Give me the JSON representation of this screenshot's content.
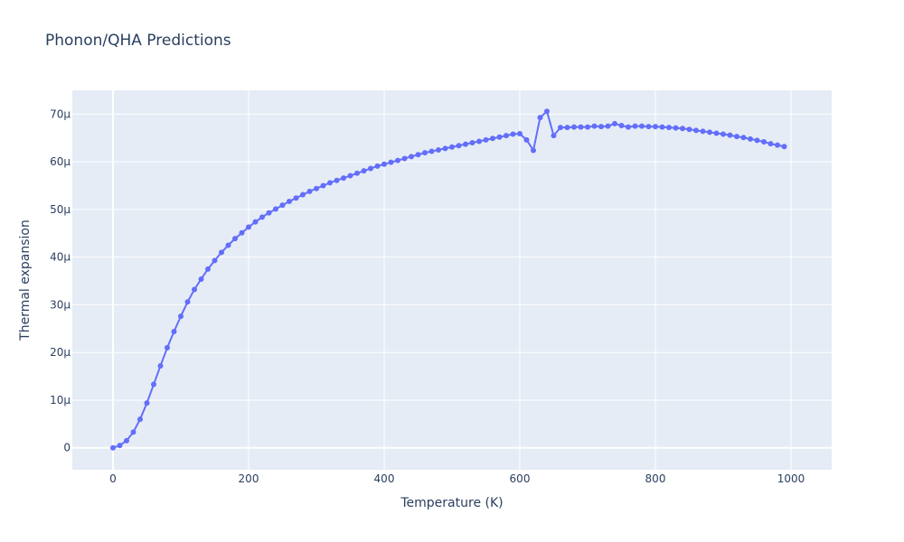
{
  "chart_data": {
    "type": "line",
    "title": "Phonon/QHA Predictions",
    "xlabel": "Temperature (K)",
    "ylabel": "Thermal expansion",
    "xlim": [
      -60,
      1060
    ],
    "ylim": [
      -4.6e-06,
      7.5e-05
    ],
    "x_ticks": [
      0,
      200,
      400,
      600,
      800,
      1000
    ],
    "x_tick_labels": [
      "0",
      "200",
      "400",
      "600",
      "800",
      "1000"
    ],
    "y_ticks": [
      0,
      1e-05,
      2e-05,
      3e-05,
      4e-05,
      5e-05,
      6e-05,
      7e-05
    ],
    "y_tick_labels": [
      "0",
      "10μ",
      "20μ",
      "30μ",
      "40μ",
      "50μ",
      "60μ",
      "70μ"
    ],
    "grid": true,
    "legend": "none",
    "colors": {
      "line": "#636efa",
      "plot_bg": "#e5ecf6",
      "grid": "#ffffff",
      "text": "#2a3f5f"
    },
    "series": [
      {
        "x": [
          0,
          10,
          20,
          30,
          40,
          50,
          60,
          70,
          80,
          90,
          100,
          110,
          120,
          130,
          140,
          150,
          160,
          170,
          180,
          190,
          200,
          210,
          220,
          230,
          240,
          250,
          260,
          270,
          280,
          290,
          300,
          310,
          320,
          330,
          340,
          350,
          360,
          370,
          380,
          390,
          400,
          410,
          420,
          430,
          440,
          450,
          460,
          470,
          480,
          490,
          500,
          510,
          520,
          530,
          540,
          550,
          560,
          570,
          580,
          590,
          600,
          610,
          620,
          630,
          640,
          650,
          660,
          670,
          680,
          690,
          700,
          710,
          720,
          730,
          740,
          750,
          760,
          770,
          780,
          790,
          800,
          810,
          820,
          830,
          840,
          850,
          860,
          870,
          880,
          890,
          900,
          910,
          920,
          930,
          940,
          950,
          960,
          970,
          980,
          990
        ],
        "y": [
          0.0,
          5e-07,
          1.5e-06,
          3.3e-06,
          6e-06,
          9.4e-06,
          1.33e-05,
          1.72e-05,
          2.1e-05,
          2.44e-05,
          2.76e-05,
          3.06e-05,
          3.32e-05,
          3.54e-05,
          3.75e-05,
          3.93e-05,
          4.1e-05,
          4.25e-05,
          4.39e-05,
          4.51e-05,
          4.63e-05,
          4.74e-05,
          4.84e-05,
          4.93e-05,
          5.01e-05,
          5.09e-05,
          5.17e-05,
          5.24e-05,
          5.31e-05,
          5.38e-05,
          5.44e-05,
          5.5e-05,
          5.56e-05,
          5.61e-05,
          5.66e-05,
          5.71e-05,
          5.76e-05,
          5.81e-05,
          5.86e-05,
          5.91e-05,
          5.95e-05,
          5.99e-05,
          6.03e-05,
          6.07e-05,
          6.11e-05,
          6.15e-05,
          6.19e-05,
          6.22e-05,
          6.25e-05,
          6.28e-05,
          6.31e-05,
          6.34e-05,
          6.37e-05,
          6.4e-05,
          6.43e-05,
          6.46e-05,
          6.49e-05,
          6.52e-05,
          6.55e-05,
          6.58e-05,
          6.59e-05,
          6.46e-05,
          6.24e-05,
          6.93e-05,
          7.06e-05,
          6.55e-05,
          6.72e-05,
          6.72e-05,
          6.73e-05,
          6.73e-05,
          6.73e-05,
          6.75e-05,
          6.74e-05,
          6.75e-05,
          6.8e-05,
          6.76e-05,
          6.73e-05,
          6.75e-05,
          6.75e-05,
          6.74e-05,
          6.74e-05,
          6.73e-05,
          6.72e-05,
          6.71e-05,
          6.7e-05,
          6.68e-05,
          6.66e-05,
          6.64e-05,
          6.62e-05,
          6.6e-05,
          6.58e-05,
          6.56e-05,
          6.53e-05,
          6.51e-05,
          6.48e-05,
          6.45e-05,
          6.42e-05,
          6.38e-05,
          6.35e-05,
          6.32e-05
        ]
      }
    ]
  }
}
